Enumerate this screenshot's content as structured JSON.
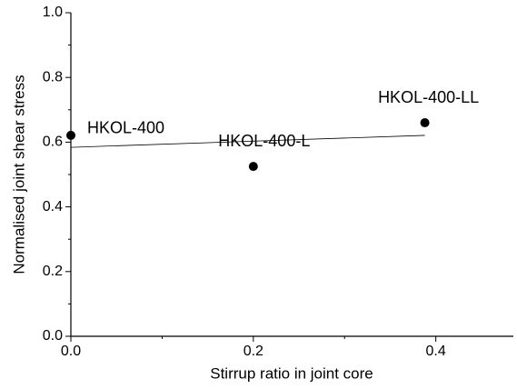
{
  "chart_data": {
    "type": "scatter",
    "x_label": "Stirrup ratio in joint core",
    "y_label": "Normalised joint shear stress",
    "x": [
      0,
      0.2,
      0.388
    ],
    "values": [
      0.621,
      0.525,
      0.66
    ],
    "point_labels": [
      "HKOL-400",
      "HKOL-400-L",
      "HKOL-400-LL"
    ],
    "color": "#000000",
    "trendline": {
      "x": [
        0,
        0.388
      ],
      "values": [
        0.584,
        0.621
      ],
      "color": "#000000"
    },
    "xlim": [
      0,
      0.485
    ],
    "ylim": [
      0,
      1.0
    ],
    "xticks": [
      {
        "value": 0,
        "label": "0.0"
      },
      0.2,
      0.4
    ],
    "yticks": [
      {
        "value": 0,
        "label": "0.0"
      },
      0.2,
      0.4,
      0.6,
      0.8,
      {
        "value": 1,
        "label": "1.0"
      }
    ],
    "x_minor_ticks": [
      0.1,
      0.3
    ],
    "y_minor_ticks": [
      0.1,
      0.3,
      0.5,
      0.7,
      0.9
    ]
  }
}
